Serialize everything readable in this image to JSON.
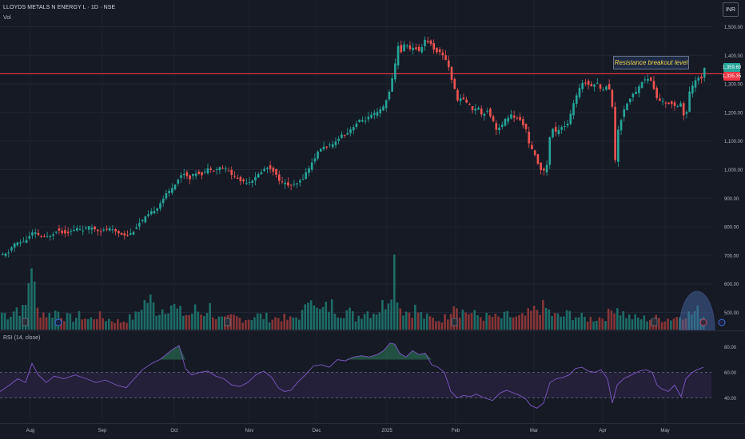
{
  "header": {
    "symbol_line": "LLOYDS METALS N ENERGY L · 1D · NSE",
    "volume_label": "Vol",
    "currency": "INR"
  },
  "rsi": {
    "label": "RSI (14, close)",
    "axis_labels": [
      "80.00",
      "60.00",
      "40.00"
    ]
  },
  "annotation": {
    "text": "Resistance breakout level"
  },
  "price_tags": {
    "last": "1,359.60",
    "level": "1,335.35"
  },
  "colors": {
    "background": "#161a25",
    "up": "#26a69a",
    "down": "#ef5350",
    "resistance_line": "#f23645",
    "rsi_line": "#7e57c2",
    "annotation_text": "#f0d24a"
  },
  "chart_data": {
    "type": "candlestick",
    "title": "LLOYDS METALS N ENERGY L · 1D · NSE",
    "x_tick_labels": [
      "Aug",
      "Sep",
      "Oct",
      "Nov",
      "Dec",
      "2025",
      "Feb",
      "Mar",
      "Apr",
      "May"
    ],
    "y_tick_labels": [
      "1,500.00",
      "1,400.00",
      "1,300.00",
      "1,200.00",
      "1,100.00",
      "1,000.00",
      "900.00",
      "800.00",
      "700.00",
      "600.00",
      "500.00"
    ],
    "ylim": [
      450,
      1530
    ],
    "resistance_level": 1335.35,
    "last_price": 1359.6,
    "close_path": [
      [
        0,
        700
      ],
      [
        8,
        705
      ],
      [
        16,
        740
      ],
      [
        24,
        745
      ],
      [
        32,
        755
      ],
      [
        40,
        780
      ],
      [
        48,
        770
      ],
      [
        56,
        760
      ],
      [
        64,
        775
      ],
      [
        70,
        790
      ],
      [
        78,
        780
      ],
      [
        86,
        782
      ],
      [
        96,
        795
      ],
      [
        104,
        790
      ],
      [
        112,
        800
      ],
      [
        118,
        792
      ],
      [
        126,
        785
      ],
      [
        134,
        793
      ],
      [
        142,
        785
      ],
      [
        150,
        775
      ],
      [
        158,
        770
      ],
      [
        164,
        780
      ],
      [
        172,
        810
      ],
      [
        180,
        830
      ],
      [
        188,
        850
      ],
      [
        196,
        870
      ],
      [
        204,
        905
      ],
      [
        212,
        930
      ],
      [
        220,
        960
      ],
      [
        228,
        990
      ],
      [
        236,
        970
      ],
      [
        244,
        990
      ],
      [
        252,
        985
      ],
      [
        260,
        1005
      ],
      [
        268,
        1000
      ],
      [
        276,
        1010
      ],
      [
        284,
        995
      ],
      [
        292,
        975
      ],
      [
        300,
        960
      ],
      [
        310,
        958
      ],
      [
        318,
        970
      ],
      [
        326,
        995
      ],
      [
        334,
        1010
      ],
      [
        340,
        1000
      ],
      [
        346,
        970
      ],
      [
        352,
        955
      ],
      [
        360,
        945
      ],
      [
        368,
        945
      ],
      [
        376,
        965
      ],
      [
        384,
        1000
      ],
      [
        392,
        1040
      ],
      [
        400,
        1075
      ],
      [
        408,
        1082
      ],
      [
        416,
        1085
      ],
      [
        424,
        1120
      ],
      [
        432,
        1125
      ],
      [
        440,
        1150
      ],
      [
        448,
        1170
      ],
      [
        456,
        1175
      ],
      [
        464,
        1190
      ],
      [
        472,
        1200
      ],
      [
        480,
        1225
      ],
      [
        486,
        1280
      ],
      [
        492,
        1345
      ],
      [
        496,
        1440
      ],
      [
        500,
        1410
      ],
      [
        506,
        1445
      ],
      [
        512,
        1420
      ],
      [
        518,
        1425
      ],
      [
        524,
        1415
      ],
      [
        530,
        1455
      ],
      [
        536,
        1445
      ],
      [
        542,
        1420
      ],
      [
        548,
        1410
      ],
      [
        554,
        1400
      ],
      [
        560,
        1360
      ],
      [
        566,
        1290
      ],
      [
        572,
        1240
      ],
      [
        578,
        1250
      ],
      [
        584,
        1230
      ],
      [
        590,
        1210
      ],
      [
        596,
        1220
      ],
      [
        602,
        1190
      ],
      [
        608,
        1210
      ],
      [
        614,
        1180
      ],
      [
        620,
        1140
      ],
      [
        626,
        1150
      ],
      [
        632,
        1180
      ],
      [
        638,
        1190
      ],
      [
        644,
        1180
      ],
      [
        650,
        1170
      ],
      [
        656,
        1150
      ],
      [
        660,
        1090
      ],
      [
        666,
        1060
      ],
      [
        672,
        1020
      ],
      [
        678,
        990
      ],
      [
        682,
        1000
      ],
      [
        688,
        1150
      ],
      [
        694,
        1130
      ],
      [
        700,
        1150
      ],
      [
        706,
        1155
      ],
      [
        710,
        1165
      ],
      [
        716,
        1230
      ],
      [
        722,
        1270
      ],
      [
        728,
        1310
      ],
      [
        734,
        1300
      ],
      [
        740,
        1295
      ],
      [
        746,
        1305
      ],
      [
        752,
        1270
      ],
      [
        758,
        1300
      ],
      [
        764,
        1260
      ],
      [
        768,
        1020
      ],
      [
        772,
        1140
      ],
      [
        778,
        1200
      ],
      [
        784,
        1240
      ],
      [
        790,
        1260
      ],
      [
        796,
        1280
      ],
      [
        802,
        1310
      ],
      [
        808,
        1320
      ],
      [
        814,
        1310
      ],
      [
        820,
        1250
      ],
      [
        826,
        1240
      ],
      [
        832,
        1230
      ],
      [
        838,
        1235
      ],
      [
        844,
        1220
      ],
      [
        850,
        1235
      ],
      [
        856,
        1165
      ],
      [
        860,
        1260
      ],
      [
        866,
        1300
      ],
      [
        872,
        1320
      ],
      [
        876,
        1320
      ],
      [
        880,
        1359
      ]
    ],
    "volume_path": [
      [
        0,
        22
      ],
      [
        10,
        18
      ],
      [
        20,
        28
      ],
      [
        30,
        22
      ],
      [
        38,
        95
      ],
      [
        44,
        25
      ],
      [
        52,
        22
      ],
      [
        60,
        18
      ],
      [
        70,
        24
      ],
      [
        80,
        16
      ],
      [
        90,
        14
      ],
      [
        100,
        18
      ],
      [
        110,
        12
      ],
      [
        120,
        18
      ],
      [
        130,
        14
      ],
      [
        140,
        12
      ],
      [
        150,
        10
      ],
      [
        160,
        14
      ],
      [
        170,
        18
      ],
      [
        176,
        32
      ],
      [
        186,
        38
      ],
      [
        196,
        22
      ],
      [
        204,
        28
      ],
      [
        212,
        34
      ],
      [
        220,
        24
      ],
      [
        228,
        20
      ],
      [
        236,
        18
      ],
      [
        244,
        26
      ],
      [
        252,
        18
      ],
      [
        260,
        30
      ],
      [
        270,
        14
      ],
      [
        280,
        12
      ],
      [
        290,
        16
      ],
      [
        300,
        14
      ],
      [
        310,
        14
      ],
      [
        320,
        18
      ],
      [
        330,
        16
      ],
      [
        340,
        14
      ],
      [
        350,
        16
      ],
      [
        360,
        12
      ],
      [
        370,
        16
      ],
      [
        380,
        22
      ],
      [
        388,
        60
      ],
      [
        396,
        20
      ],
      [
        404,
        26
      ],
      [
        414,
        30
      ],
      [
        424,
        22
      ],
      [
        434,
        24
      ],
      [
        444,
        14
      ],
      [
        454,
        24
      ],
      [
        464,
        22
      ],
      [
        474,
        26
      ],
      [
        480,
        34
      ],
      [
        486,
        48
      ],
      [
        492,
        86
      ],
      [
        498,
        30
      ],
      [
        508,
        22
      ],
      [
        518,
        26
      ],
      [
        528,
        16
      ],
      [
        538,
        14
      ],
      [
        548,
        12
      ],
      [
        558,
        16
      ],
      [
        566,
        40
      ],
      [
        574,
        24
      ],
      [
        584,
        22
      ],
      [
        594,
        18
      ],
      [
        604,
        16
      ],
      [
        614,
        16
      ],
      [
        624,
        14
      ],
      [
        634,
        18
      ],
      [
        644,
        14
      ],
      [
        654,
        16
      ],
      [
        664,
        22
      ],
      [
        674,
        28
      ],
      [
        682,
        26
      ],
      [
        690,
        18
      ],
      [
        700,
        16
      ],
      [
        712,
        20
      ],
      [
        722,
        16
      ],
      [
        732,
        14
      ],
      [
        742,
        14
      ],
      [
        752,
        16
      ],
      [
        762,
        20
      ],
      [
        768,
        34
      ],
      [
        776,
        22
      ],
      [
        786,
        16
      ],
      [
        796,
        14
      ],
      [
        806,
        14
      ],
      [
        816,
        14
      ],
      [
        826,
        14
      ],
      [
        836,
        14
      ],
      [
        846,
        16
      ],
      [
        856,
        22
      ],
      [
        862,
        18
      ],
      [
        870,
        24
      ],
      [
        876,
        20
      ],
      [
        880,
        16
      ]
    ],
    "rsi_path": [
      [
        0,
        45
      ],
      [
        12,
        50
      ],
      [
        22,
        55
      ],
      [
        32,
        52
      ],
      [
        40,
        67
      ],
      [
        48,
        58
      ],
      [
        58,
        52
      ],
      [
        68,
        57
      ],
      [
        80,
        55
      ],
      [
        94,
        58
      ],
      [
        108,
        55
      ],
      [
        120,
        52
      ],
      [
        132,
        54
      ],
      [
        146,
        50
      ],
      [
        158,
        48
      ],
      [
        168,
        55
      ],
      [
        178,
        62
      ],
      [
        190,
        67
      ],
      [
        200,
        70
      ],
      [
        208,
        74
      ],
      [
        216,
        78
      ],
      [
        224,
        81
      ],
      [
        232,
        63
      ],
      [
        240,
        58
      ],
      [
        250,
        60
      ],
      [
        260,
        61
      ],
      [
        270,
        57
      ],
      [
        280,
        55
      ],
      [
        290,
        50
      ],
      [
        300,
        49
      ],
      [
        310,
        52
      ],
      [
        320,
        58
      ],
      [
        330,
        61
      ],
      [
        340,
        56
      ],
      [
        348,
        48
      ],
      [
        356,
        45
      ],
      [
        364,
        46
      ],
      [
        372,
        52
      ],
      [
        382,
        58
      ],
      [
        392,
        65
      ],
      [
        402,
        66
      ],
      [
        412,
        64
      ],
      [
        422,
        70
      ],
      [
        432,
        69
      ],
      [
        442,
        72
      ],
      [
        452,
        73
      ],
      [
        462,
        72
      ],
      [
        472,
        74
      ],
      [
        480,
        77
      ],
      [
        488,
        83
      ],
      [
        494,
        82
      ],
      [
        500,
        75
      ],
      [
        508,
        72
      ],
      [
        516,
        77
      ],
      [
        524,
        74
      ],
      [
        532,
        75
      ],
      [
        540,
        66
      ],
      [
        548,
        64
      ],
      [
        556,
        60
      ],
      [
        564,
        45
      ],
      [
        572,
        40
      ],
      [
        580,
        42
      ],
      [
        588,
        41
      ],
      [
        596,
        43
      ],
      [
        606,
        40
      ],
      [
        616,
        38
      ],
      [
        626,
        44
      ],
      [
        634,
        46
      ],
      [
        642,
        44
      ],
      [
        650,
        42
      ],
      [
        658,
        39
      ],
      [
        664,
        34
      ],
      [
        672,
        32
      ],
      [
        680,
        36
      ],
      [
        688,
        52
      ],
      [
        696,
        55
      ],
      [
        704,
        56
      ],
      [
        712,
        58
      ],
      [
        720,
        63
      ],
      [
        728,
        64
      ],
      [
        736,
        61
      ],
      [
        744,
        60
      ],
      [
        752,
        62
      ],
      [
        760,
        55
      ],
      [
        766,
        36
      ],
      [
        772,
        50
      ],
      [
        780,
        55
      ],
      [
        790,
        58
      ],
      [
        800,
        61
      ],
      [
        808,
        62
      ],
      [
        816,
        60
      ],
      [
        822,
        50
      ],
      [
        828,
        47
      ],
      [
        836,
        45
      ],
      [
        844,
        50
      ],
      [
        852,
        41
      ],
      [
        858,
        55
      ],
      [
        866,
        60
      ],
      [
        872,
        62
      ],
      [
        880,
        64
      ]
    ]
  }
}
